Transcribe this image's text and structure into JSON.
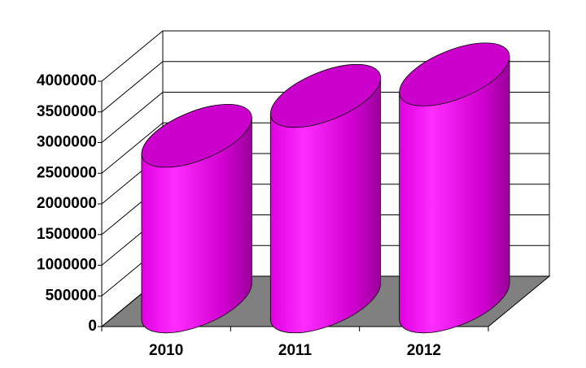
{
  "chart_data": {
    "type": "bar",
    "categories": [
      "2010",
      "2011",
      "2012"
    ],
    "values": [
      2700000,
      3350000,
      3700000
    ],
    "color": "#ff00ff",
    "ylim": [
      0,
      4000000
    ],
    "yticks": [
      0,
      500000,
      1000000,
      1500000,
      2000000,
      2500000,
      3000000,
      3500000,
      4000000
    ],
    "grid": true
  }
}
